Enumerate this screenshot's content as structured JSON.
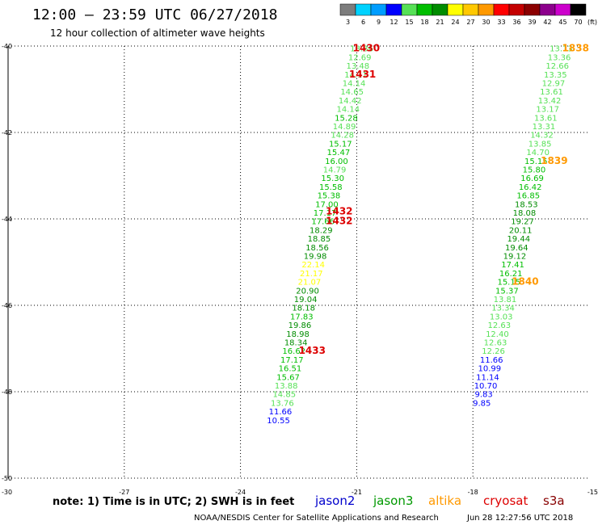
{
  "title": "12:00 – 23:59 UTC 06/27/2018",
  "subtitle": "12 hour collection of altimeter wave heights",
  "colorbar": {
    "labels": [
      "3",
      "6",
      "9",
      "12",
      "15",
      "18",
      "21",
      "24",
      "27",
      "30",
      "33",
      "36",
      "39",
      "42",
      "45",
      "70"
    ],
    "colors": [
      "#7d7d7d",
      "#00d2ff",
      "#009dff",
      "#0000ff",
      "#56e156",
      "#00be00",
      "#008c00",
      "#ffff00",
      "#ffc800",
      "#ff9900",
      "#ff0000",
      "#c40000",
      "#8b0000",
      "#8c008c",
      "#cc00cc",
      "#000000"
    ],
    "unit": "(ft)"
  },
  "footer": {
    "note": "note:  1) Time is in UTC; 2) SWH is in feet",
    "credit": "NOAA/NESDIS Center for Satellite Applications and Research",
    "timestamp": "Jun 28 12:27:56 UTC 2018"
  },
  "legend": [
    {
      "name": "jason2",
      "color": "#0000cc"
    },
    {
      "name": "jason3",
      "color": "#009900"
    },
    {
      "name": "altika",
      "color": "#ff9900"
    },
    {
      "name": "cryosat",
      "color": "#dd0000"
    },
    {
      "name": "s3a",
      "color": "#880000"
    }
  ],
  "chart_data": {
    "type": "scatter",
    "xlim": [
      -30,
      -15
    ],
    "ylim": [
      -50,
      -40
    ],
    "xticks": [
      -30,
      -27,
      -24,
      -21,
      -18,
      -15
    ],
    "yticks": [
      -40,
      -42,
      -44,
      -46,
      -48,
      -50
    ],
    "grid": true,
    "series": [
      {
        "name": "jason3",
        "color": "#009900",
        "points": [
          {
            "x": -20.87,
            "y": -40.05,
            "v": "13.36",
            "c": "#56e156"
          },
          {
            "x": -20.92,
            "y": -40.25,
            "v": "12.69",
            "c": "#56e156"
          },
          {
            "x": -20.97,
            "y": -40.45,
            "v": "13.48",
            "c": "#56e156"
          },
          {
            "x": -21.02,
            "y": -40.65,
            "v": "14.11",
            "c": "#56e156"
          },
          {
            "x": -21.07,
            "y": -40.85,
            "v": "14.14",
            "c": "#56e156"
          },
          {
            "x": -21.12,
            "y": -41.05,
            "v": "14.65",
            "c": "#56e156"
          },
          {
            "x": -21.17,
            "y": -41.25,
            "v": "14.42",
            "c": "#56e156"
          },
          {
            "x": -21.22,
            "y": -41.45,
            "v": "14.14",
            "c": "#56e156"
          },
          {
            "x": -21.27,
            "y": -41.65,
            "v": "15.28",
            "c": "#00be00"
          },
          {
            "x": -21.32,
            "y": -41.85,
            "v": "14.89",
            "c": "#56e156"
          },
          {
            "x": -21.37,
            "y": -42.05,
            "v": "14.28",
            "c": "#56e156"
          },
          {
            "x": -21.42,
            "y": -42.25,
            "v": "15.17",
            "c": "#00be00"
          },
          {
            "x": -21.47,
            "y": -42.45,
            "v": "15.47",
            "c": "#00be00"
          },
          {
            "x": -21.52,
            "y": -42.65,
            "v": "16.00",
            "c": "#00be00"
          },
          {
            "x": -21.57,
            "y": -42.85,
            "v": "14.79",
            "c": "#56e156"
          },
          {
            "x": -21.62,
            "y": -43.05,
            "v": "15.30",
            "c": "#00be00"
          },
          {
            "x": -21.67,
            "y": -43.25,
            "v": "15.58",
            "c": "#00be00"
          },
          {
            "x": -21.72,
            "y": -43.45,
            "v": "15.38",
            "c": "#00be00"
          },
          {
            "x": -21.77,
            "y": -43.65,
            "v": "17.00",
            "c": "#00be00"
          },
          {
            "x": -21.82,
            "y": -43.85,
            "v": "17.17",
            "c": "#00be00"
          },
          {
            "x": -21.87,
            "y": -44.05,
            "v": "17.66",
            "c": "#00be00"
          },
          {
            "x": -21.92,
            "y": -44.25,
            "v": "18.29",
            "c": "#008c00"
          },
          {
            "x": -21.97,
            "y": -44.45,
            "v": "18.85",
            "c": "#008c00"
          },
          {
            "x": -22.02,
            "y": -44.65,
            "v": "18.56",
            "c": "#008c00"
          },
          {
            "x": -22.07,
            "y": -44.85,
            "v": "19.98",
            "c": "#008c00"
          },
          {
            "x": -22.12,
            "y": -45.05,
            "v": "22.14",
            "c": "#ffff00"
          },
          {
            "x": -22.17,
            "y": -45.25,
            "v": "21.17",
            "c": "#ffff00"
          },
          {
            "x": -22.22,
            "y": -45.45,
            "v": "21.07",
            "c": "#ffff00"
          },
          {
            "x": -22.27,
            "y": -45.65,
            "v": "20.90",
            "c": "#008c00"
          },
          {
            "x": -22.32,
            "y": -45.85,
            "v": "19.04",
            "c": "#008c00"
          },
          {
            "x": -22.37,
            "y": -46.05,
            "v": "18.18",
            "c": "#008c00"
          },
          {
            "x": -22.42,
            "y": -46.25,
            "v": "17.83",
            "c": "#00be00"
          },
          {
            "x": -22.47,
            "y": -46.45,
            "v": "19.86",
            "c": "#008c00"
          },
          {
            "x": -22.52,
            "y": -46.65,
            "v": "18.98",
            "c": "#008c00"
          },
          {
            "x": -22.57,
            "y": -46.85,
            "v": "18.34",
            "c": "#008c00"
          },
          {
            "x": -22.62,
            "y": -47.05,
            "v": "16.62",
            "c": "#00be00"
          },
          {
            "x": -22.67,
            "y": -47.25,
            "v": "17.17",
            "c": "#00be00"
          },
          {
            "x": -22.72,
            "y": -47.45,
            "v": "16.51",
            "c": "#00be00"
          },
          {
            "x": -22.77,
            "y": -47.65,
            "v": "15.67",
            "c": "#00be00"
          },
          {
            "x": -22.82,
            "y": -47.85,
            "v": "13.88",
            "c": "#56e156"
          },
          {
            "x": -22.87,
            "y": -48.05,
            "v": "14.85",
            "c": "#56e156"
          },
          {
            "x": -22.92,
            "y": -48.25,
            "v": "13.76",
            "c": "#56e156"
          },
          {
            "x": -22.97,
            "y": -48.45,
            "v": "11.66",
            "c": "#0000ff"
          },
          {
            "x": -23.02,
            "y": -48.65,
            "v": "10.55",
            "c": "#0000ff"
          },
          {
            "x": -15.72,
            "y": -40.05,
            "v": "13.13",
            "c": "#56e156"
          },
          {
            "x": -15.77,
            "y": -40.25,
            "v": "13.36",
            "c": "#56e156"
          },
          {
            "x": -15.82,
            "y": -40.45,
            "v": "12.66",
            "c": "#56e156"
          },
          {
            "x": -15.87,
            "y": -40.65,
            "v": "13.35",
            "c": "#56e156"
          },
          {
            "x": -15.92,
            "y": -40.85,
            "v": "12.97",
            "c": "#56e156"
          },
          {
            "x": -15.97,
            "y": -41.05,
            "v": "13.61",
            "c": "#56e156"
          },
          {
            "x": -16.02,
            "y": -41.25,
            "v": "13.42",
            "c": "#56e156"
          },
          {
            "x": -16.07,
            "y": -41.45,
            "v": "13.17",
            "c": "#56e156"
          },
          {
            "x": -16.12,
            "y": -41.65,
            "v": "13.61",
            "c": "#56e156"
          },
          {
            "x": -16.17,
            "y": -41.85,
            "v": "13.31",
            "c": "#56e156"
          },
          {
            "x": -16.22,
            "y": -42.05,
            "v": "14.32",
            "c": "#56e156"
          },
          {
            "x": -16.27,
            "y": -42.25,
            "v": "13.85",
            "c": "#56e156"
          },
          {
            "x": -16.32,
            "y": -42.45,
            "v": "14.70",
            "c": "#56e156"
          },
          {
            "x": -16.37,
            "y": -42.65,
            "v": "15.15",
            "c": "#00be00"
          },
          {
            "x": -16.42,
            "y": -42.85,
            "v": "15.80",
            "c": "#00be00"
          },
          {
            "x": -16.47,
            "y": -43.05,
            "v": "16.69",
            "c": "#00be00"
          },
          {
            "x": -16.52,
            "y": -43.25,
            "v": "16.42",
            "c": "#00be00"
          },
          {
            "x": -16.57,
            "y": -43.45,
            "v": "16.85",
            "c": "#00be00"
          },
          {
            "x": -16.62,
            "y": -43.65,
            "v": "18.53",
            "c": "#008c00"
          },
          {
            "x": -16.67,
            "y": -43.85,
            "v": "18.08",
            "c": "#008c00"
          },
          {
            "x": -16.72,
            "y": -44.05,
            "v": "19.27",
            "c": "#008c00"
          },
          {
            "x": -16.77,
            "y": -44.25,
            "v": "20.11",
            "c": "#008c00"
          },
          {
            "x": -16.82,
            "y": -44.45,
            "v": "19.44",
            "c": "#008c00"
          },
          {
            "x": -16.87,
            "y": -44.65,
            "v": "19.64",
            "c": "#008c00"
          },
          {
            "x": -16.92,
            "y": -44.85,
            "v": "19.12",
            "c": "#008c00"
          },
          {
            "x": -16.97,
            "y": -45.05,
            "v": "17.41",
            "c": "#00be00"
          },
          {
            "x": -17.02,
            "y": -45.25,
            "v": "16.21",
            "c": "#00be00"
          },
          {
            "x": -17.07,
            "y": -45.45,
            "v": "15.15",
            "c": "#00be00"
          },
          {
            "x": -17.12,
            "y": -45.65,
            "v": "15.37",
            "c": "#00be00"
          },
          {
            "x": -17.17,
            "y": -45.85,
            "v": "13.81",
            "c": "#56e156"
          },
          {
            "x": -17.22,
            "y": -46.05,
            "v": "13.34",
            "c": "#56e156"
          },
          {
            "x": -17.27,
            "y": -46.25,
            "v": "13.03",
            "c": "#56e156"
          },
          {
            "x": -17.32,
            "y": -46.45,
            "v": "12.63",
            "c": "#56e156"
          },
          {
            "x": -17.37,
            "y": -46.65,
            "v": "12.40",
            "c": "#56e156"
          },
          {
            "x": -17.42,
            "y": -46.85,
            "v": "12.63",
            "c": "#56e156"
          },
          {
            "x": -17.47,
            "y": -47.05,
            "v": "12.26",
            "c": "#56e156"
          },
          {
            "x": -17.52,
            "y": -47.25,
            "v": "11.66",
            "c": "#0000ff"
          },
          {
            "x": -17.57,
            "y": -47.45,
            "v": "10.99",
            "c": "#0000ff"
          },
          {
            "x": -17.62,
            "y": -47.65,
            "v": "11.14",
            "c": "#0000ff"
          },
          {
            "x": -17.67,
            "y": -47.85,
            "v": "10.70",
            "c": "#0000ff"
          },
          {
            "x": -17.72,
            "y": -48.05,
            "v": "9.83",
            "c": "#0000ff"
          },
          {
            "x": -17.77,
            "y": -48.25,
            "v": "9.85",
            "c": "#0000ff"
          }
        ]
      }
    ],
    "time_labels": [
      {
        "x": -20.75,
        "y": -40.05,
        "text": "1430",
        "color": "#dd0000"
      },
      {
        "x": -20.85,
        "y": -40.65,
        "text": "1431",
        "color": "#dd0000"
      },
      {
        "x": -21.45,
        "y": -43.82,
        "text": "1432",
        "color": "#dd0000"
      },
      {
        "x": -21.45,
        "y": -44.05,
        "text": "1432",
        "color": "#dd0000"
      },
      {
        "x": -22.15,
        "y": -47.05,
        "text": "1433",
        "color": "#dd0000"
      },
      {
        "x": -15.35,
        "y": -40.05,
        "text": "1838",
        "color": "#ff9900"
      },
      {
        "x": -15.9,
        "y": -42.65,
        "text": "1839",
        "color": "#ff9900"
      },
      {
        "x": -16.65,
        "y": -45.45,
        "text": "1840",
        "color": "#ff9900"
      }
    ]
  }
}
